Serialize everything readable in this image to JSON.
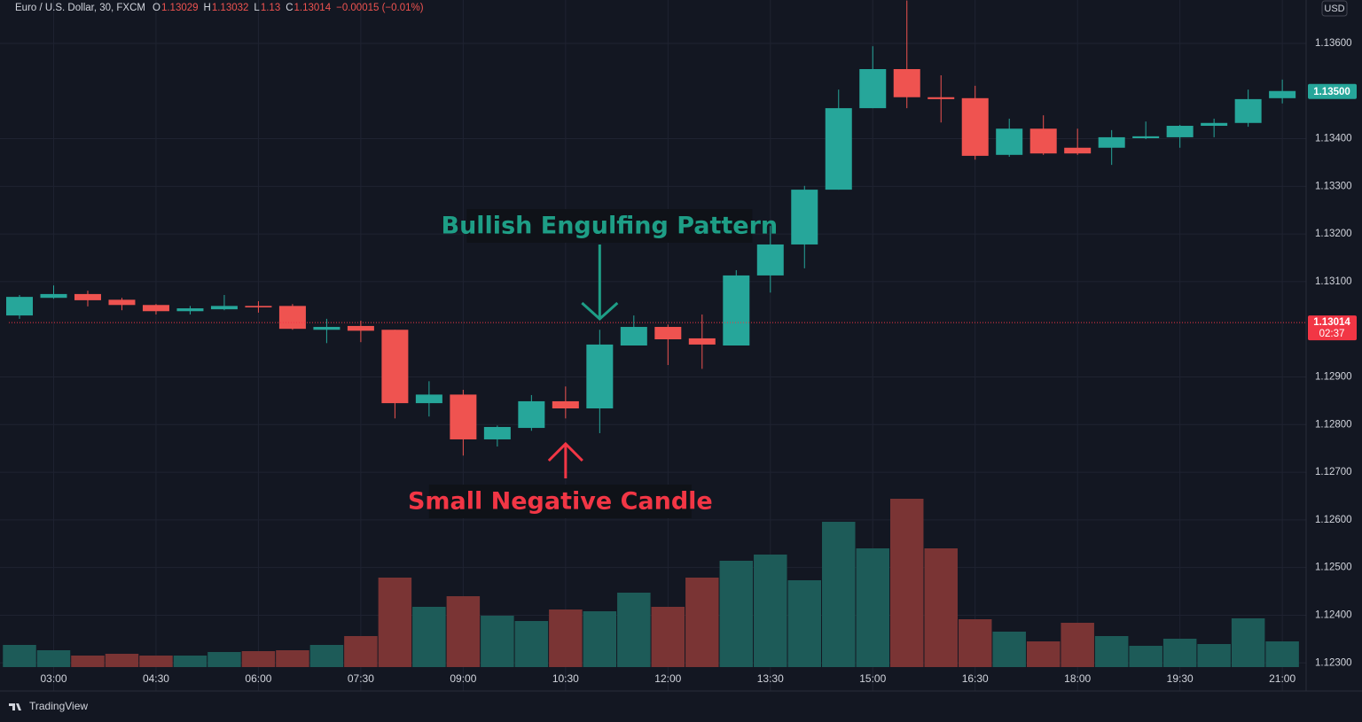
{
  "chart_data": {
    "type": "candlestick",
    "title": "Euro / U.S. Dollar, 30, FXCM",
    "ohlc_header": [
      {
        "label": "O",
        "value": 1.13029
      },
      {
        "label": "H",
        "value": 1.13032
      },
      {
        "label": "L",
        "value": 1.13
      },
      {
        "label": "C",
        "value": 1.13014
      }
    ],
    "change": "−0.00015 (−0.01%)",
    "currency": "USD",
    "categories": [
      null,
      "03:00",
      null,
      null,
      "04:30",
      null,
      null,
      "06:00",
      null,
      null,
      "07:30",
      null,
      null,
      "09:00",
      null,
      null,
      "10:30",
      null,
      null,
      "12:00",
      null,
      null,
      "13:30",
      null,
      null,
      "15:00",
      null,
      null,
      "16:30",
      null,
      null,
      "18:00",
      null,
      null,
      "19:30",
      null,
      null,
      "21:00"
    ],
    "open": [
      1.13029,
      1.13066,
      1.13074,
      1.13062,
      1.13051,
      1.13038,
      1.13042,
      1.13049,
      1.13049,
      1.12999,
      1.13007,
      1.12999,
      1.12845,
      1.12863,
      1.12769,
      1.12793,
      1.12849,
      1.12834,
      1.12966,
      1.13005,
      1.12981,
      1.12966,
      1.13113,
      1.13178,
      1.13293,
      1.13464,
      1.13546,
      1.13487,
      1.13485,
      1.13366,
      1.13421,
      1.13381,
      1.13381,
      1.13401,
      1.13403,
      1.13427,
      1.13433,
      1.13485
    ],
    "high": [
      1.13072,
      1.13092,
      1.13081,
      1.13066,
      1.13053,
      1.13049,
      1.13072,
      1.13059,
      1.13053,
      1.13022,
      1.13018,
      1.12999,
      1.12891,
      1.12873,
      1.12798,
      1.12862,
      1.1288,
      1.12999,
      1.13029,
      1.1301,
      1.13031,
      1.13124,
      1.13217,
      1.13301,
      1.13503,
      1.13594,
      1.1369,
      1.13533,
      1.13511,
      1.13442,
      1.13449,
      1.13421,
      1.13418,
      1.13436,
      1.13429,
      1.13442,
      1.13503,
      1.13524
    ],
    "low": [
      1.13022,
      1.13064,
      1.13048,
      1.1304,
      1.13031,
      1.13031,
      1.1304,
      1.13035,
      1.12999,
      1.12971,
      1.12973,
      1.12813,
      1.12817,
      1.12735,
      1.12754,
      1.12787,
      1.12813,
      1.12782,
      1.12966,
      1.12925,
      1.12917,
      1.12966,
      1.13077,
      1.13128,
      1.13293,
      1.13464,
      1.13464,
      1.13434,
      1.13356,
      1.13362,
      1.13366,
      1.13366,
      1.13345,
      1.13399,
      1.13381,
      1.13403,
      1.13425,
      1.13474
    ],
    "close": [
      1.13068,
      1.13074,
      1.13061,
      1.13051,
      1.13038,
      1.13044,
      1.13049,
      1.13046,
      1.13001,
      1.13005,
      1.12997,
      1.12845,
      1.12863,
      1.12769,
      1.12795,
      1.12849,
      1.12834,
      1.12968,
      1.13005,
      1.12979,
      1.12968,
      1.13113,
      1.13178,
      1.13293,
      1.13464,
      1.13546,
      1.13487,
      1.13483,
      1.13364,
      1.13421,
      1.13369,
      1.13369,
      1.13403,
      1.13405,
      1.13427,
      1.13433,
      1.13483,
      1.135
    ],
    "volume": [
      25,
      19,
      13,
      15,
      13,
      13,
      17,
      18,
      19,
      25,
      35,
      101,
      68,
      80,
      58,
      52,
      65,
      63,
      84,
      68,
      101,
      120,
      127,
      98,
      164,
      134,
      190,
      134,
      54,
      40,
      29,
      50,
      35,
      24,
      32,
      26,
      55,
      29
    ],
    "up_color": "#26a69a",
    "down_color": "#ef5350",
    "volume_up_color": "#1d5b58",
    "volume_down_color": "#7a3434",
    "ylim": [
      1.12241,
      1.13691
    ],
    "yticks": [
      {
        "value": 1.123,
        "label": "1.12300"
      },
      {
        "value": 1.124,
        "label": "1.12400"
      },
      {
        "value": 1.125,
        "label": "1.12500"
      },
      {
        "value": 1.126,
        "label": "1.12600"
      },
      {
        "value": 1.127,
        "label": "1.12700"
      },
      {
        "value": 1.128,
        "label": "1.12800"
      },
      {
        "value": 1.129,
        "label": "1.12900"
      },
      {
        "value": 1.131,
        "label": "1.13100"
      },
      {
        "value": 1.132,
        "label": "1.13200"
      },
      {
        "value": 1.133,
        "label": "1.13300"
      },
      {
        "value": 1.134,
        "label": "1.13400"
      },
      {
        "value": 1.136,
        "label": "1.13600"
      }
    ],
    "grid": true,
    "last_close_label": "1.13500",
    "current_price": {
      "value": 1.13014,
      "label": "1.13014",
      "countdown": "02:37"
    },
    "annotations": [
      {
        "text": "Bullish Engulfing Pattern",
        "candle": 17
      },
      {
        "text": "Small Negative Candle",
        "candle": 16
      }
    ],
    "brand": "TradingView"
  }
}
